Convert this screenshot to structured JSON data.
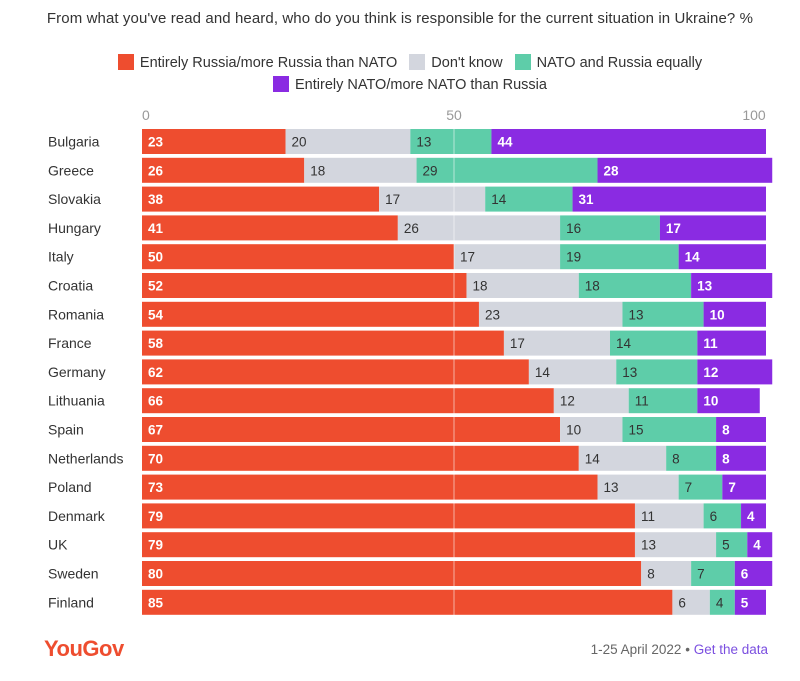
{
  "chart_data": {
    "type": "bar",
    "orientation": "horizontal",
    "stacked": true,
    "title": "From what you've read and heard, who do you think is responsible for the current situation in Ukraine? %",
    "xlim": [
      0,
      100
    ],
    "x_ticks": [
      0,
      50,
      100
    ],
    "grid": true,
    "legend_placement": "top",
    "categories": [
      "Bulgaria",
      "Greece",
      "Slovakia",
      "Hungary",
      "Italy",
      "Croatia",
      "Romania",
      "France",
      "Germany",
      "Lithuania",
      "Spain",
      "Netherlands",
      "Poland",
      "Denmark",
      "UK",
      "Sweden",
      "Finland"
    ],
    "series": [
      {
        "name": "Entirely Russia/more Russia than NATO",
        "color": "#ee4d2f",
        "values": [
          23,
          26,
          38,
          41,
          50,
          52,
          54,
          58,
          62,
          66,
          67,
          70,
          73,
          79,
          79,
          80,
          85
        ]
      },
      {
        "name": "Don't know",
        "color": "#d3d6de",
        "values": [
          20,
          18,
          17,
          26,
          17,
          18,
          23,
          17,
          14,
          12,
          10,
          14,
          13,
          11,
          13,
          8,
          6
        ]
      },
      {
        "name": "NATO and Russia equally",
        "color": "#5ecda9",
        "values": [
          13,
          29,
          14,
          16,
          19,
          18,
          13,
          14,
          13,
          11,
          15,
          8,
          7,
          6,
          5,
          7,
          4
        ]
      },
      {
        "name": "Entirely NATO/more NATO than Russia",
        "color": "#8a2be2",
        "values": [
          44,
          28,
          31,
          17,
          14,
          13,
          10,
          11,
          12,
          10,
          8,
          8,
          7,
          4,
          4,
          6,
          5
        ]
      }
    ]
  },
  "legend_labels": {
    "s0": "Entirely Russia/more Russia than NATO",
    "s1": "Don't know",
    "s2": "NATO and Russia equally",
    "s3": "Entirely NATO/more NATO than Russia"
  },
  "footer": {
    "logo": "YouGov",
    "date": "1-25 April 2022",
    "separator": " • ",
    "link": "Get the data"
  },
  "colors": {
    "label_dark": "#333333",
    "label_light": "#ffffff",
    "tick": "#999999"
  }
}
